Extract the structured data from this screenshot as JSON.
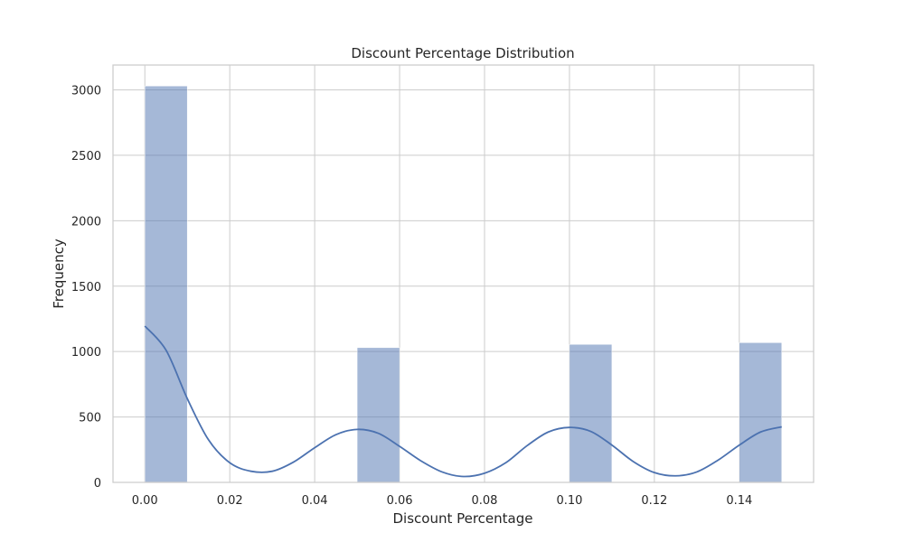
{
  "chart_data": {
    "type": "bar",
    "title": "Discount Percentage Distribution",
    "xlabel": "Discount Percentage",
    "ylabel": "Frequency",
    "xlim": [
      -0.0075,
      0.1575
    ],
    "ylim": [
      0,
      3190
    ],
    "xticks": [
      0.0,
      0.02,
      0.04,
      0.06,
      0.08,
      0.1,
      0.12,
      0.14
    ],
    "xtick_labels": [
      "0.00",
      "0.02",
      "0.04",
      "0.06",
      "0.08",
      "0.10",
      "0.12",
      "0.14"
    ],
    "yticks": [
      0,
      500,
      1000,
      1500,
      2000,
      2500,
      3000
    ],
    "ytick_labels": [
      "0",
      "500",
      "1000",
      "1500",
      "2000",
      "2500",
      "3000"
    ],
    "grid": true,
    "colors": {
      "bar_fill": "#4c72b0",
      "bar_opacity": 0.5,
      "kde_line": "#4c72b0"
    },
    "bins": [
      {
        "x0": 0.0,
        "x1": 0.01,
        "count": 3030
      },
      {
        "x0": 0.05,
        "x1": 0.06,
        "count": 1030
      },
      {
        "x0": 0.1,
        "x1": 0.11,
        "count": 1055
      },
      {
        "x0": 0.14,
        "x1": 0.15,
        "count": 1068
      }
    ],
    "kde": {
      "x": [
        0.0,
        0.005,
        0.01,
        0.015,
        0.02,
        0.025,
        0.03,
        0.035,
        0.04,
        0.045,
        0.05,
        0.055,
        0.06,
        0.065,
        0.07,
        0.075,
        0.08,
        0.085,
        0.09,
        0.095,
        0.1,
        0.105,
        0.11,
        0.115,
        0.12,
        0.125,
        0.13,
        0.135,
        0.14,
        0.145,
        0.15
      ],
      "y": [
        1195,
        1010,
        640,
        325,
        150,
        85,
        85,
        155,
        265,
        365,
        405,
        375,
        275,
        165,
        80,
        45,
        70,
        150,
        280,
        385,
        420,
        390,
        285,
        160,
        75,
        50,
        80,
        170,
        285,
        385,
        425
      ]
    }
  }
}
